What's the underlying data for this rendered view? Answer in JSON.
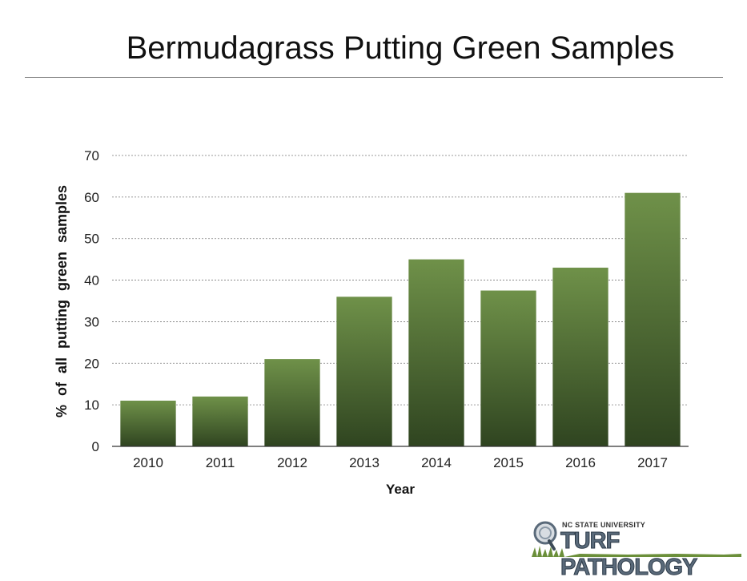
{
  "title": "Bermudagrass Putting Green Samples",
  "colors": {
    "bar_top": "#6f9149",
    "bar_bottom": "#2f4420",
    "gridline": "#7a7a7a",
    "axis": "#333333"
  },
  "logo": {
    "university": "NC STATE UNIVERSITY",
    "wordmark": "TURF PATHOLOGY"
  },
  "chart_data": {
    "type": "bar",
    "categories": [
      "2010",
      "2011",
      "2012",
      "2013",
      "2014",
      "2015",
      "2016",
      "2017"
    ],
    "values": [
      11,
      12,
      21,
      36,
      45,
      37.5,
      43,
      61
    ],
    "xlabel": "Year",
    "ylabel": "% of all putting green samples",
    "ylim": [
      0,
      70
    ],
    "yticks": [
      0,
      10,
      20,
      30,
      40,
      50,
      60,
      70
    ],
    "grid": true,
    "legend": "none"
  }
}
